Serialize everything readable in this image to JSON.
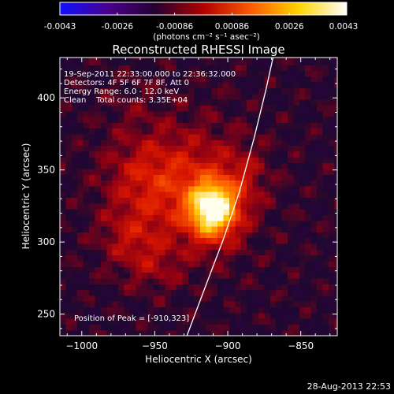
{
  "colorbar": {
    "ticks": [
      "-0.0043",
      "-0.0026",
      "-0.00086",
      "0.00086",
      "0.0026",
      "0.0043"
    ],
    "unit": "(photons cm⁻² s⁻¹ asec⁻²)",
    "colors": [
      "#1010ff",
      "#4a0090",
      "#250030",
      "#b00000",
      "#ff5a00",
      "#ffd400",
      "#ffffff"
    ]
  },
  "chart_data": {
    "type": "heatmap",
    "title": "Reconstructed RHESSI Image",
    "xlabel": "Heliocentric X (arcsec)",
    "ylabel": "Heliocentric Y (arcsec)",
    "xlim": [
      -1015,
      -825
    ],
    "ylim": [
      235,
      428
    ],
    "xticks": [
      -1000,
      -950,
      -900,
      -850
    ],
    "yticks": [
      250,
      300,
      350,
      400
    ],
    "xtick_labels": [
      "−1000",
      "−950",
      "−900",
      "−850"
    ],
    "ytick_labels": [
      "250",
      "300",
      "350",
      "400"
    ],
    "peak": {
      "x": -910,
      "y": 323
    },
    "value_range": [
      -0.0043,
      0.0043
    ],
    "sources": [
      {
        "x": -910,
        "y": 323,
        "sx": 11,
        "sy": 13,
        "amp": 0.0043
      },
      {
        "x": -922,
        "y": 336,
        "sx": 26,
        "sy": 30,
        "amp": 0.0014
      },
      {
        "x": -958,
        "y": 346,
        "sx": 20,
        "sy": 20,
        "amp": 0.001
      },
      {
        "x": -967,
        "y": 304,
        "sx": 15,
        "sy": 15,
        "amp": 0.0009
      },
      {
        "x": -951,
        "y": 283,
        "sx": 14,
        "sy": 12,
        "amp": 0.0006
      },
      {
        "x": -965,
        "y": 398,
        "sx": 15,
        "sy": 15,
        "amp": 0.0003
      },
      {
        "x": -888,
        "y": 345,
        "sx": 10,
        "sy": 14,
        "amp": 0.0006
      }
    ],
    "limb_curve": [
      {
        "x": -928,
        "y": 235
      },
      {
        "x": -915,
        "y": 270
      },
      {
        "x": -903,
        "y": 302
      },
      {
        "x": -892,
        "y": 335
      },
      {
        "x": -882,
        "y": 372
      },
      {
        "x": -874,
        "y": 405
      },
      {
        "x": -869,
        "y": 428
      }
    ],
    "annotations": [
      "19-Sep-2011 22:33:00.000 to 22:36:32.000",
      "Detectors: 4F 5F 6F 7F 8F, Att 0",
      "Energy Range: 6.0 - 12.0 keV",
      "Clean    Total counts: 3.35E+04"
    ],
    "peak_label": "Position of Peak = [-910,323]"
  },
  "footer": {
    "timestamp": "28-Aug-2013 22:53"
  }
}
